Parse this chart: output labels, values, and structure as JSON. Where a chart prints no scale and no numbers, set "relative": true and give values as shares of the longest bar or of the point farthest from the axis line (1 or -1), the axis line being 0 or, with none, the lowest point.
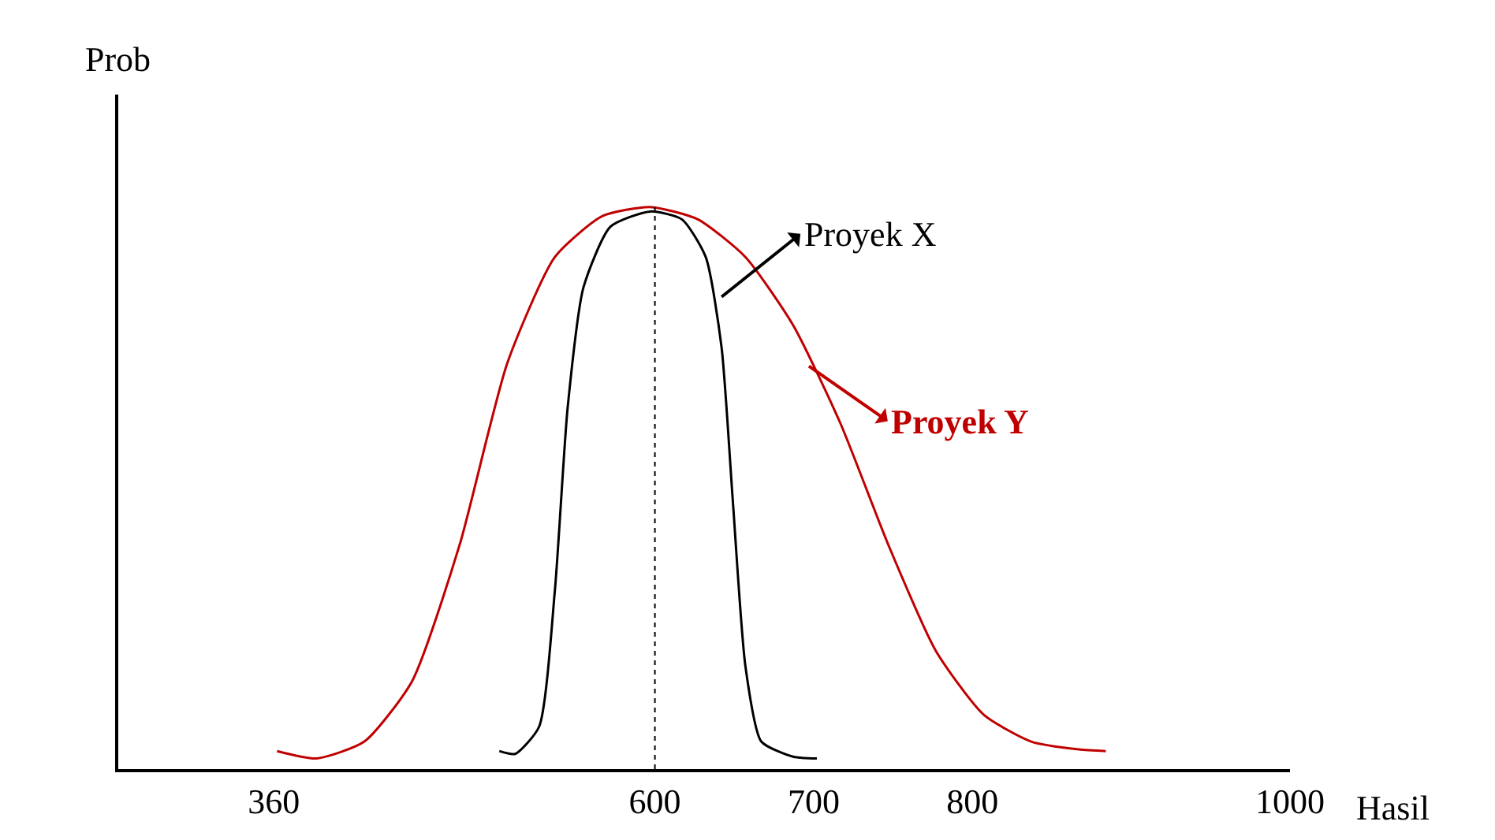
{
  "chart_data": {
    "type": "line",
    "relative": true,
    "xlabel": "Hasil",
    "ylabel": "Prob",
    "xlim": [
      262,
      1000
    ],
    "xticks": [
      360,
      600,
      700,
      800,
      1000
    ],
    "tick_labels": "x",
    "marker": "none",
    "line_style": "solid",
    "series": [
      {
        "color": "#000000",
        "x": [
          502,
          512,
          527,
          537,
          545,
          555,
          572,
          597,
          617,
          632,
          642,
          649,
          657,
          667,
          687,
          702
        ],
        "values": [
          0.032,
          0.027,
          0.075,
          0.318,
          0.642,
          0.857,
          0.965,
          0.992,
          0.978,
          0.911,
          0.75,
          0.48,
          0.183,
          0.049,
          0.022,
          0.019
        ]
      },
      {
        "color": "#c00000",
        "x": [
          362,
          387,
          417,
          447,
          477,
          507,
          537,
          567,
          597,
          627,
          657,
          687,
          717,
          747,
          777,
          807,
          837,
          867,
          884
        ],
        "values": [
          0.032,
          0.019,
          0.049,
          0.156,
          0.399,
          0.722,
          0.911,
          0.984,
          1.0,
          0.978,
          0.911,
          0.79,
          0.614,
          0.399,
          0.21,
          0.097,
          0.049,
          0.035,
          0.032
        ]
      }
    ],
    "ref_lines": [
      {
        "axis": "x",
        "value": 600,
        "color": "#000000",
        "line_style": "dotted"
      }
    ],
    "annotations": [
      {
        "text": "Proyek X",
        "x": 642,
        "y": 0.84
      },
      {
        "text": "Proyek Y",
        "x": 697,
        "y": 0.717
      }
    ]
  }
}
